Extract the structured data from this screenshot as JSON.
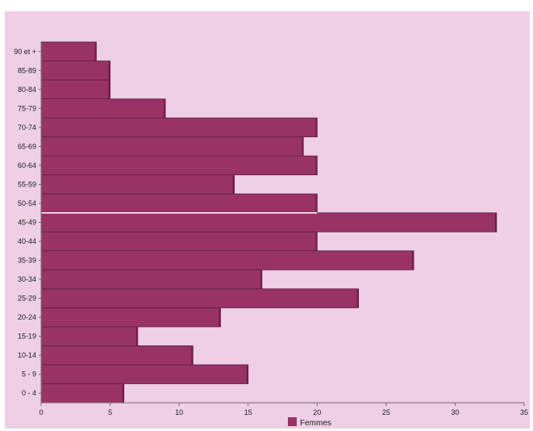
{
  "chart_data": {
    "type": "bar",
    "orientation": "horizontal",
    "categories": [
      "0 - 4",
      "5 - 9",
      "10-14",
      "15-19",
      "20-24",
      "25-29",
      "30-34",
      "35-39",
      "40-44",
      "45-49",
      "50-54",
      "55-59",
      "60-64",
      "65-69",
      "70-74",
      "75-79",
      "80-84",
      "85-89",
      "90 et +"
    ],
    "series": [
      {
        "name": "Femmes",
        "values": [
          6,
          15,
          11,
          7,
          13,
          23,
          16,
          27,
          20,
          33,
          20,
          14,
          20,
          19,
          20,
          9,
          5,
          5,
          4
        ]
      }
    ],
    "x_ticks": [
      0,
      5,
      10,
      15,
      20,
      25,
      30,
      35
    ],
    "xlim": [
      0,
      35
    ],
    "grid": false,
    "legend_position": "bottom",
    "colors": {
      "background": "#eecfe6",
      "bar": "#993366",
      "bar_edge": "#5a1d3f",
      "separator": "#ffffff"
    }
  }
}
